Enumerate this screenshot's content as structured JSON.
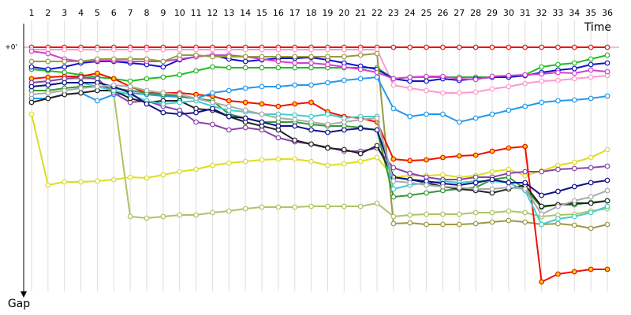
{
  "chart_data": {
    "type": "line",
    "x_label": "Time",
    "y_label": "Gap",
    "categories": [
      "1",
      "2",
      "3",
      "4",
      "5",
      "6",
      "7",
      "8",
      "9",
      "10",
      "11",
      "12",
      "13",
      "14",
      "15",
      "16",
      "17",
      "18",
      "19",
      "20",
      "21",
      "22",
      "23",
      "24",
      "25",
      "26",
      "27",
      "28",
      "29",
      "30",
      "31",
      "32",
      "33",
      "34",
      "35",
      "36"
    ],
    "ylim": [
      0,
      310
    ],
    "yticks": [
      {
        "value": 0,
        "label": "+0'"
      }
    ],
    "inverted_y": true,
    "grid": true,
    "marker_fill": "#ffffff",
    "series": [
      {
        "color": "#ee1111",
        "values": [
          0,
          0,
          0,
          0,
          0,
          0,
          0,
          0,
          0,
          0,
          0,
          0,
          0,
          0,
          0,
          0,
          0,
          0,
          0,
          0,
          0,
          0,
          0,
          0,
          0,
          0,
          0,
          0,
          0,
          0,
          0,
          0,
          0,
          0,
          0,
          0
        ]
      },
      {
        "color": "#ff99cc",
        "values": [
          3,
          3,
          3,
          3,
          3,
          3,
          3,
          3,
          3,
          3,
          3,
          3,
          3,
          3,
          3,
          3,
          3,
          3,
          3,
          3,
          3,
          3,
          48,
          52,
          55,
          58,
          58,
          57,
          53,
          50,
          46,
          43,
          42,
          40,
          38,
          36
        ]
      },
      {
        "color": "#22bb22",
        "values": [
          28,
          30,
          32,
          35,
          38,
          40,
          43,
          40,
          38,
          35,
          30,
          25,
          26,
          26,
          26,
          26,
          26,
          26,
          26,
          26,
          26,
          26,
          40,
          38,
          38,
          38,
          38,
          38,
          38,
          38,
          35,
          25,
          22,
          20,
          15,
          10
        ]
      },
      {
        "color": "#1111cc",
        "values": [
          25,
          28,
          25,
          20,
          18,
          18,
          20,
          22,
          25,
          16,
          12,
          10,
          15,
          18,
          16,
          14,
          14,
          13,
          16,
          20,
          24,
          28,
          40,
          43,
          43,
          40,
          42,
          40,
          38,
          38,
          36,
          32,
          29,
          27,
          22,
          20
        ]
      },
      {
        "color": "#cc44cc",
        "values": [
          5,
          8,
          15,
          18,
          17,
          17,
          18,
          18,
          18,
          15,
          12,
          10,
          10,
          12,
          15,
          18,
          20,
          20,
          22,
          25,
          28,
          32,
          40,
          38,
          37,
          37,
          40,
          41,
          37,
          36,
          35,
          34,
          32,
          33,
          29,
          31
        ]
      },
      {
        "color": "#999944",
        "values": [
          18,
          18,
          18,
          18,
          15,
          15,
          15,
          15,
          18,
          10,
          10,
          12,
          12,
          12,
          12,
          12,
          12,
          12,
          12,
          12,
          10,
          8,
          224,
          223,
          225,
          225,
          225,
          224,
          222,
          220,
          222,
          225,
          224,
          226,
          230,
          225
        ]
      },
      {
        "color": "#aac466",
        "values": [
          45,
          43,
          40,
          40,
          40,
          60,
          215,
          217,
          215,
          213,
          213,
          210,
          208,
          205,
          203,
          203,
          203,
          202,
          202,
          202,
          202,
          198,
          215,
          213,
          212,
          212,
          212,
          210,
          210,
          208,
          210,
          215,
          213,
          212,
          208,
          205
        ]
      },
      {
        "color": "#dddd22",
        "values": [
          85,
          175,
          171,
          171,
          170,
          168,
          165,
          166,
          162,
          158,
          155,
          150,
          147,
          145,
          143,
          142,
          142,
          145,
          150,
          148,
          145,
          140,
          165,
          163,
          163,
          162,
          165,
          163,
          158,
          155,
          163,
          157,
          150,
          146,
          140,
          130
        ]
      },
      {
        "color": "#ee1100",
        "marker_fill": "#ffcc00",
        "values": [
          40,
          38,
          37,
          37,
          33,
          40,
          50,
          58,
          58,
          58,
          60,
          62,
          68,
          70,
          72,
          75,
          72,
          70,
          82,
          88,
          90,
          95,
          142,
          144,
          143,
          140,
          138,
          137,
          132,
          128,
          126,
          298,
          288,
          285,
          282,
          282
        ]
      },
      {
        "color": "#2299ee",
        "values": [
          65,
          65,
          60,
          58,
          68,
          60,
          58,
          60,
          62,
          63,
          65,
          58,
          55,
          52,
          50,
          50,
          48,
          48,
          45,
          42,
          40,
          38,
          78,
          88,
          85,
          85,
          95,
          90,
          85,
          80,
          75,
          70,
          68,
          67,
          65,
          62
        ]
      },
      {
        "color": "#339933",
        "values": [
          55,
          55,
          52,
          50,
          50,
          52,
          55,
          58,
          60,
          62,
          65,
          68,
          85,
          90,
          95,
          95,
          95,
          98,
          100,
          100,
          102,
          105,
          190,
          188,
          185,
          182,
          180,
          178,
          168,
          165,
          180,
          203,
          200,
          200,
          197,
          195
        ]
      },
      {
        "color": "#8844aa",
        "values": [
          45,
          43,
          40,
          38,
          40,
          58,
          70,
          68,
          75,
          80,
          95,
          98,
          105,
          102,
          105,
          115,
          120,
          123,
          127,
          132,
          132,
          128,
          153,
          160,
          165,
          168,
          168,
          165,
          165,
          160,
          158,
          158,
          155,
          154,
          153,
          151
        ]
      },
      {
        "color": "#222222",
        "values": [
          70,
          65,
          60,
          58,
          55,
          55,
          65,
          70,
          68,
          68,
          78,
          80,
          88,
          95,
          100,
          105,
          118,
          123,
          128,
          130,
          135,
          125,
          165,
          168,
          172,
          177,
          180,
          182,
          185,
          180,
          175,
          202,
          200,
          198,
          198,
          195
        ]
      },
      {
        "color": "#44cccc",
        "values": [
          50,
          48,
          45,
          45,
          50,
          55,
          60,
          68,
          72,
          70,
          68,
          75,
          80,
          82,
          85,
          85,
          86,
          88,
          85,
          90,
          88,
          88,
          180,
          175,
          172,
          170,
          172,
          170,
          170,
          172,
          182,
          225,
          218,
          215,
          210,
          202
        ]
      },
      {
        "color": "#111188",
        "values": [
          50,
          48,
          45,
          45,
          45,
          50,
          58,
          72,
          83,
          85,
          83,
          78,
          88,
          90,
          95,
          100,
          100,
          105,
          108,
          105,
          103,
          105,
          165,
          168,
          170,
          173,
          175,
          172,
          168,
          172,
          172,
          188,
          183,
          177,
          172,
          169
        ]
      },
      {
        "color": "#aaaaaa",
        "values": [
          60,
          58,
          55,
          52,
          50,
          48,
          50,
          55,
          58,
          60,
          65,
          70,
          75,
          80,
          85,
          90,
          92,
          95,
          98,
          95,
          92,
          90,
          170,
          172,
          175,
          177,
          178,
          180,
          180,
          178,
          180,
          212,
          202,
          195,
          190,
          182
        ]
      }
    ]
  }
}
